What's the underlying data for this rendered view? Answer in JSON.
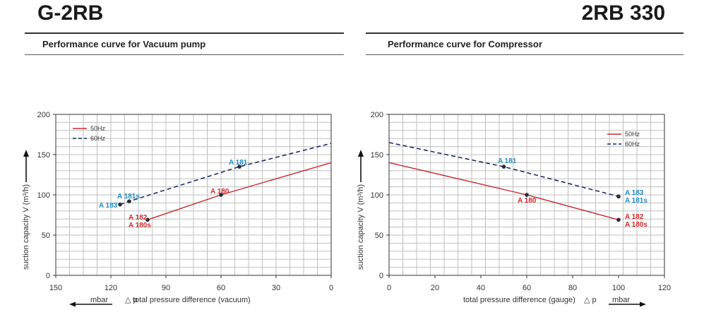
{
  "header": {
    "left_title": "G-2RB",
    "right_title": "2RB 330",
    "left_subtitle": "Performance curve for Vacuum pump",
    "right_subtitle": "Performance curve for Compressor"
  },
  "colors": {
    "series_50hz": "#c8282d",
    "series_60hz": "#1c2a6b",
    "label_red": "#d12a2a",
    "label_blue": "#1e8bc3",
    "grid": "#bfbfbf"
  },
  "chart_data": [
    {
      "type": "line",
      "title": "Performance curve for Vacuum pump",
      "xlabel": "total pressure difference (vacuum)",
      "xlabel_prefix": "△ p",
      "xunit": "mbar",
      "ylabel": "suction capacity V (m³/h)",
      "xlim": [
        150,
        0
      ],
      "ylim": [
        0,
        200
      ],
      "x_ticks": [
        150,
        120,
        90,
        60,
        30,
        0
      ],
      "y_ticks": [
        0,
        50,
        100,
        150,
        200
      ],
      "legend": "top-left",
      "series": [
        {
          "name": "50Hz",
          "style": "solid",
          "x": [
            100,
            60,
            0
          ],
          "y": [
            69,
            100,
            140
          ]
        },
        {
          "name": "60Hz",
          "style": "dashed",
          "x": [
            115,
            110,
            50,
            0
          ],
          "y": [
            88,
            92,
            135,
            164
          ]
        }
      ],
      "points": [
        {
          "x": 100,
          "y": 69,
          "labels": [
            "A 182",
            "A 180s"
          ],
          "color": "red"
        },
        {
          "x": 60,
          "y": 100,
          "labels": [
            "A 180"
          ],
          "color": "red"
        },
        {
          "x": 115,
          "y": 88,
          "labels": [
            "A 183"
          ],
          "color": "blue"
        },
        {
          "x": 110,
          "y": 92,
          "labels": [
            "A 181s"
          ],
          "color": "blue"
        },
        {
          "x": 50,
          "y": 135,
          "labels": [
            "A 181"
          ],
          "color": "blue"
        }
      ]
    },
    {
      "type": "line",
      "title": "Performance curve for Compressor",
      "xlabel": "total pressure difference (gauge)",
      "xlabel_suffix": "△ p",
      "xunit": "mbar",
      "ylabel": "suction capacity V (m³/h)",
      "xlim": [
        0,
        120
      ],
      "ylim": [
        0,
        200
      ],
      "x_ticks": [
        0,
        20,
        40,
        60,
        80,
        100,
        120
      ],
      "y_ticks": [
        0,
        50,
        100,
        150,
        200
      ],
      "legend": "top-right",
      "series": [
        {
          "name": "50Hz",
          "style": "solid",
          "x": [
            0,
            60,
            100
          ],
          "y": [
            140,
            100,
            69
          ]
        },
        {
          "name": "60Hz",
          "style": "dashed",
          "x": [
            0,
            50,
            100
          ],
          "y": [
            165,
            135,
            98
          ]
        }
      ],
      "points": [
        {
          "x": 50,
          "y": 135,
          "labels": [
            "A 181"
          ],
          "color": "blue"
        },
        {
          "x": 60,
          "y": 100,
          "labels": [
            "A 180"
          ],
          "color": "red"
        },
        {
          "x": 100,
          "y": 98,
          "labels": [
            "A 183",
            "A 181s"
          ],
          "color": "blue"
        },
        {
          "x": 100,
          "y": 69,
          "labels": [
            "A 182",
            "A 180s"
          ],
          "color": "red"
        }
      ]
    }
  ]
}
